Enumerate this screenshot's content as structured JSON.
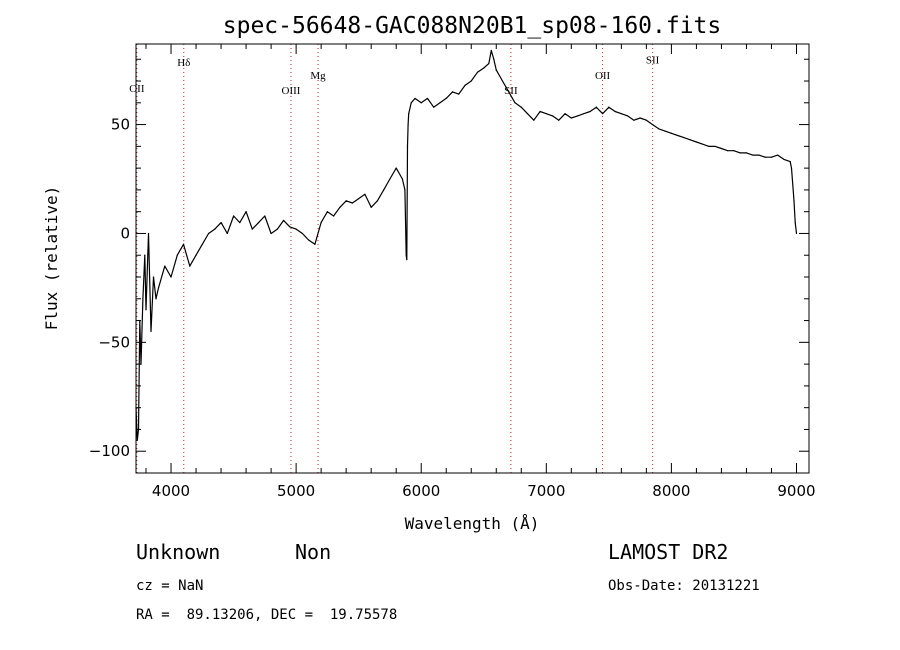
{
  "chart_data": {
    "type": "line",
    "title": "spec-56648-GAC088N20B1_sp08-160.fits",
    "xlabel": "Wavelength (Å)",
    "ylabel": "Flux (relative)",
    "xlim": [
      3720,
      9100
    ],
    "ylim": [
      -110,
      87
    ],
    "x_ticks": [
      4000,
      5000,
      6000,
      7000,
      8000,
      9000
    ],
    "y_ticks": [
      -100,
      -50,
      0,
      50
    ],
    "x_minor_step": 200,
    "y_minor_step": 10,
    "grid": false,
    "series_color": "#000000",
    "line_marker_color": "#d02020",
    "spectral_lines": [
      {
        "label": "OII",
        "wavelength": 3727,
        "label_y": 65
      },
      {
        "label": "Hδ",
        "wavelength": 4102,
        "label_y": 77
      },
      {
        "label": "OIII",
        "wavelength": 4959,
        "label_y": 64
      },
      {
        "label": "Mg",
        "wavelength": 5175,
        "label_y": 71
      },
      {
        "label": "SII",
        "wavelength": 6717,
        "label_y": 64
      },
      {
        "label": "OII",
        "wavelength": 7450,
        "label_y": 71
      },
      {
        "label": "SII",
        "wavelength": 7850,
        "label_y": 78
      }
    ],
    "series": [
      {
        "x": [
          3720,
          3730,
          3740,
          3750,
          3760,
          3775,
          3790,
          3800,
          3820,
          3840,
          3860,
          3880,
          3900,
          3950,
          4000,
          4050,
          4100,
          4150,
          4200,
          4250,
          4300,
          4350,
          4400,
          4450,
          4500,
          4550,
          4600,
          4650,
          4700,
          4750,
          4800,
          4850,
          4900,
          4950,
          5000,
          5050,
          5100,
          5150,
          5200,
          5250,
          5300,
          5350,
          5400,
          5450,
          5500,
          5550,
          5600,
          5650,
          5700,
          5750,
          5800,
          5850,
          5870,
          5880,
          5885,
          5890,
          5895,
          5900,
          5920,
          5950,
          6000,
          6050,
          6100,
          6150,
          6200,
          6250,
          6300,
          6350,
          6400,
          6450,
          6500,
          6540,
          6560,
          6580,
          6600,
          6650,
          6700,
          6750,
          6800,
          6850,
          6900,
          6950,
          7000,
          7050,
          7100,
          7150,
          7200,
          7250,
          7300,
          7350,
          7400,
          7450,
          7500,
          7550,
          7600,
          7650,
          7700,
          7750,
          7800,
          7850,
          7900,
          7950,
          8000,
          8050,
          8100,
          8150,
          8200,
          8250,
          8300,
          8350,
          8400,
          8450,
          8500,
          8550,
          8600,
          8650,
          8700,
          8750,
          8800,
          8850,
          8900,
          8950,
          8960,
          8980,
          8990,
          9000
        ],
        "y": [
          -80,
          -95,
          -90,
          -40,
          -60,
          -30,
          -10,
          -35,
          0,
          -45,
          -20,
          -30,
          -25,
          -15,
          -20,
          -10,
          -5,
          -15,
          -10,
          -5,
          0,
          2,
          5,
          0,
          8,
          5,
          10,
          2,
          5,
          8,
          0,
          2,
          6,
          3,
          2,
          0,
          -3,
          -5,
          5,
          10,
          8,
          12,
          15,
          14,
          16,
          18,
          12,
          15,
          20,
          25,
          30,
          25,
          20,
          -10,
          -12,
          40,
          50,
          55,
          60,
          62,
          60,
          62,
          58,
          60,
          62,
          65,
          64,
          68,
          70,
          74,
          76,
          78,
          84,
          80,
          75,
          70,
          65,
          60,
          58,
          55,
          52,
          56,
          55,
          54,
          52,
          55,
          53,
          54,
          55,
          56,
          58,
          55,
          58,
          56,
          55,
          54,
          52,
          53,
          52,
          50,
          48,
          47,
          46,
          45,
          44,
          43,
          42,
          41,
          40,
          40,
          39,
          38,
          38,
          37,
          37,
          36,
          36,
          35,
          35,
          36,
          34,
          33,
          30,
          15,
          5,
          0
        ]
      }
    ]
  },
  "info": {
    "class_label": "Unknown",
    "subclass_label": "Non",
    "cz_label": "cz = NaN",
    "coords_label": "RA =  89.13206, DEC =  19.75578",
    "survey_label": "LAMOST DR2",
    "obs_date_label": "Obs-Date: 20131221"
  }
}
